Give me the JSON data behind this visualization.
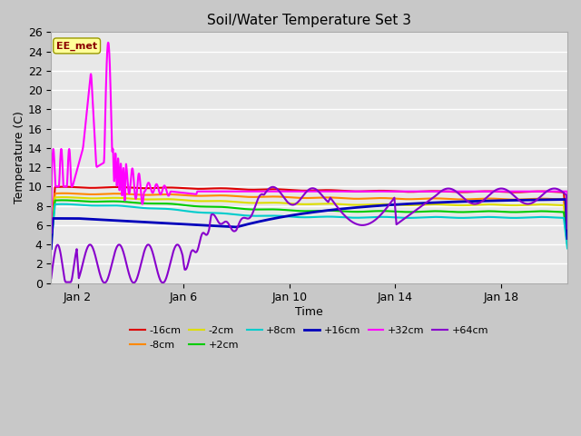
{
  "title": "Soil/Water Temperature Set 3",
  "xlabel": "Time",
  "ylabel": "Temperature (C)",
  "xlim": [
    0,
    19.5
  ],
  "ylim": [
    0,
    26
  ],
  "yticks": [
    0,
    2,
    4,
    6,
    8,
    10,
    12,
    14,
    16,
    18,
    20,
    22,
    24,
    26
  ],
  "xtick_labels": [
    "Jan 2",
    "Jan 6",
    "Jan 10",
    "Jan 14",
    "Jan 18"
  ],
  "xtick_positions": [
    1,
    5,
    9,
    13,
    17
  ],
  "plot_bg_color": "#e8e8e8",
  "fig_bg_color": "#c8c8c8",
  "annotation_text": "EE_met",
  "annotation_bg": "#ffff99",
  "annotation_fg": "#8b0000",
  "series": {
    "-16cm": {
      "color": "#dd0000",
      "lw": 1.5
    },
    "-8cm": {
      "color": "#ff8800",
      "lw": 1.5
    },
    "-2cm": {
      "color": "#dddd00",
      "lw": 1.5
    },
    "+2cm": {
      "color": "#00cc00",
      "lw": 1.5
    },
    "+8cm": {
      "color": "#00cccc",
      "lw": 1.5
    },
    "+16cm": {
      "color": "#0000bb",
      "lw": 2.0
    },
    "+32cm": {
      "color": "#ff00ff",
      "lw": 1.5
    },
    "+64cm": {
      "color": "#8800cc",
      "lw": 1.5
    }
  }
}
